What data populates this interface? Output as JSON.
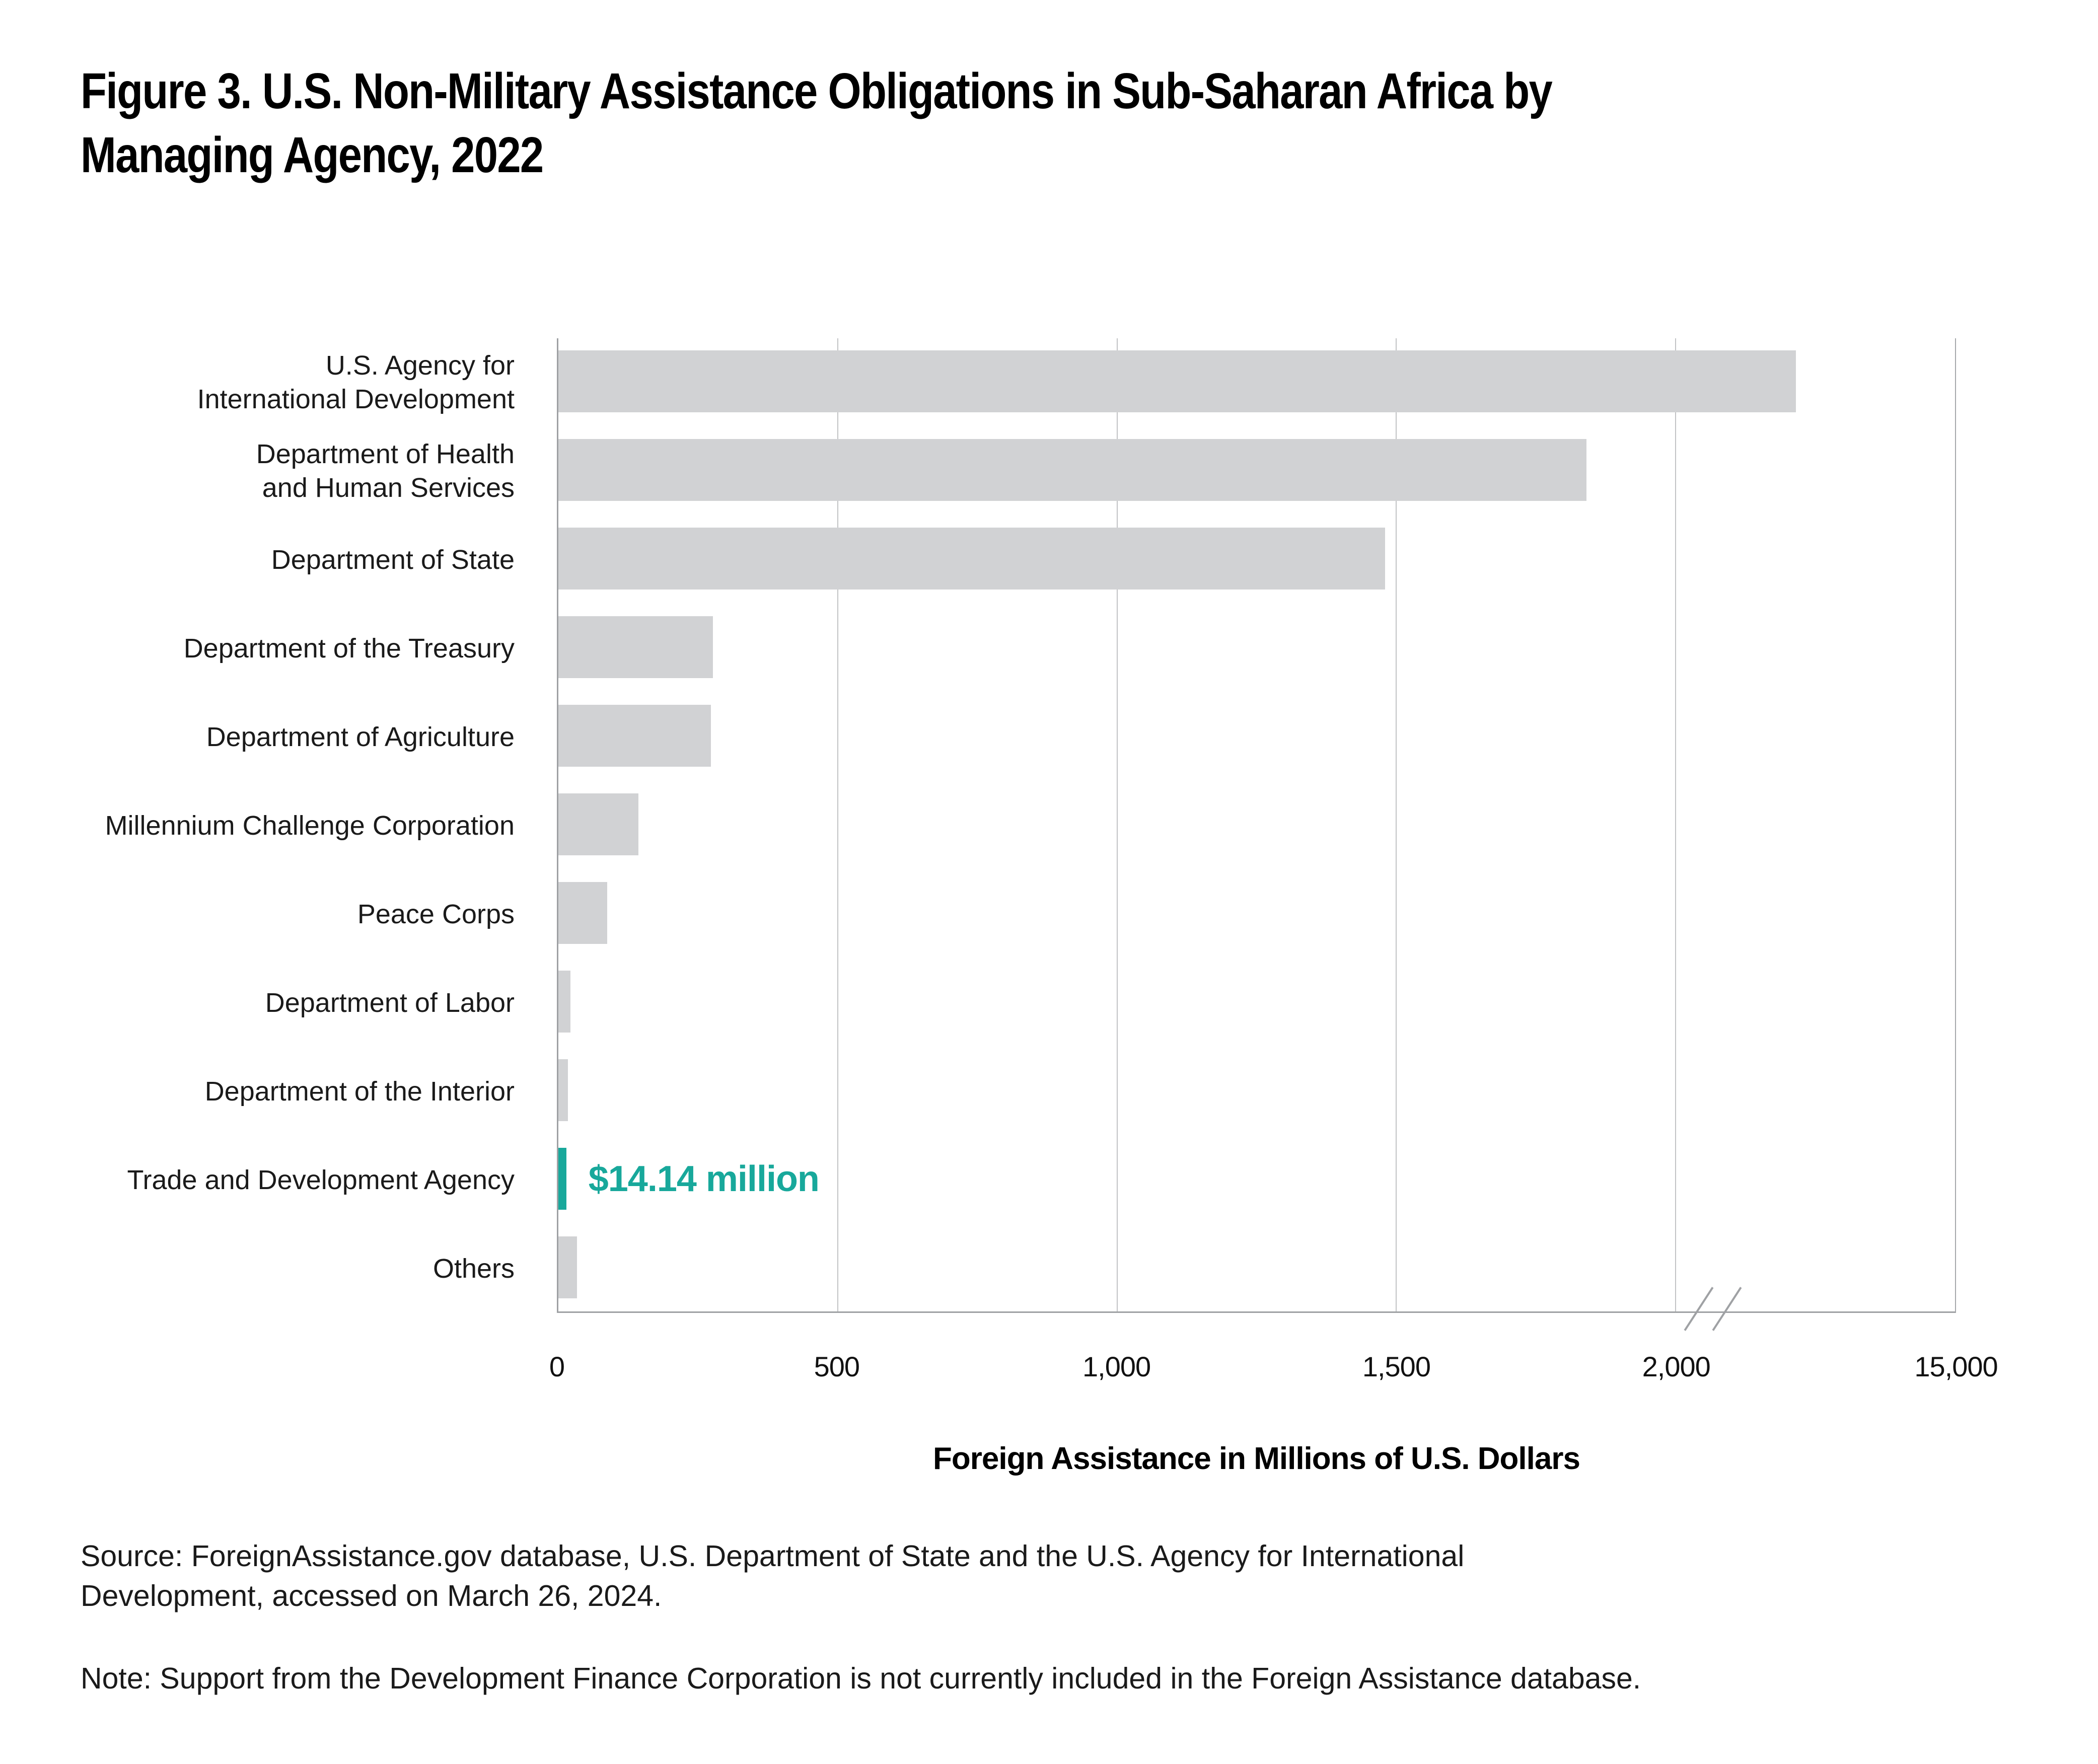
{
  "title": {
    "line1": "Figure 3. U.S. Non-Military Assistance Obligations in Sub-Saharan Africa by",
    "line2": "Managing Agency, 2022"
  },
  "chart_data": {
    "type": "bar",
    "orientation": "horizontal",
    "title": "Figure 3. U.S. Non-Military Assistance Obligations in Sub-Saharan Africa by Managing Agency, 2022",
    "xlabel": "Foreign Assistance in Millions of U.S. Dollars",
    "x_ticks": [
      0,
      500,
      1000,
      1500,
      2000,
      15000
    ],
    "x_tick_labels": [
      "0",
      "500",
      "1,000",
      "1,500",
      "2,000",
      "15,000"
    ],
    "axis_break": {
      "present": true,
      "between": [
        2000,
        15000
      ]
    },
    "grid": "vertical-on",
    "bar_color": "#d1d2d4",
    "highlight_color": "#18a89b",
    "categories": [
      {
        "label_lines": [
          "U.S. Agency for",
          "International Development"
        ],
        "value": 7600,
        "highlighted": false
      },
      {
        "label_lines": [
          "Department of Health",
          "and Human Services"
        ],
        "value": 1840,
        "highlighted": false
      },
      {
        "label_lines": [
          "Department of State"
        ],
        "value": 1480,
        "highlighted": false
      },
      {
        "label_lines": [
          "Department of the Treasury"
        ],
        "value": 277,
        "highlighted": false
      },
      {
        "label_lines": [
          "Department of Agriculture"
        ],
        "value": 273,
        "highlighted": false
      },
      {
        "label_lines": [
          "Millennium Challenge Corporation"
        ],
        "value": 143,
        "highlighted": false
      },
      {
        "label_lines": [
          "Peace Corps"
        ],
        "value": 87,
        "highlighted": false
      },
      {
        "label_lines": [
          "Department of Labor"
        ],
        "value": 22,
        "highlighted": false
      },
      {
        "label_lines": [
          "Department of the Interior"
        ],
        "value": 17,
        "highlighted": false
      },
      {
        "label_lines": [
          "Trade and Development Agency"
        ],
        "value": 14.14,
        "highlighted": true,
        "annotation": "$14.14 million"
      },
      {
        "label_lines": [
          "Others"
        ],
        "value": 33,
        "highlighted": false
      }
    ]
  },
  "source": {
    "line1": "Source: ForeignAssistance.gov database, U.S. Department of State and the U.S. Agency for International",
    "line2": "Development, accessed on March 26, 2024."
  },
  "note": "Note: Support from the Development Finance Corporation is not currently included in the Foreign Assistance database."
}
